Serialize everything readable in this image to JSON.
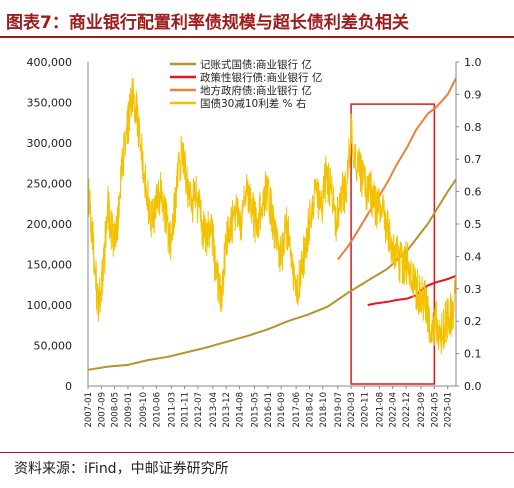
{
  "header": {
    "title": "图表7：商业银行配置利率债规模与超长债利差负相关"
  },
  "footer": {
    "source": "资料来源：iFind，中邮证券研究所"
  },
  "chart_data": {
    "type": "line",
    "left_axis": {
      "ylim": [
        0,
        400000
      ],
      "ticks": [
        "0",
        "50,000",
        "100,000",
        "150,000",
        "200,000",
        "250,000",
        "300,000",
        "350,000",
        "400,000"
      ]
    },
    "right_axis": {
      "ylim": [
        0,
        1.0
      ],
      "ticks": [
        "0.0",
        "0.1",
        "0.2",
        "0.3",
        "0.4",
        "0.5",
        "0.6",
        "0.7",
        "0.8",
        "0.9",
        "1.0"
      ]
    },
    "x_range": [
      "2007-01",
      "2025-06"
    ],
    "x_ticks": [
      "2007-01",
      "2007-09",
      "2008-05",
      "2009-01",
      "2009-10",
      "2010-06",
      "2011-03",
      "2011-11",
      "2012-07",
      "2013-04",
      "2013-12",
      "2014-08",
      "2015-05",
      "2016-01",
      "2016-09",
      "2017-06",
      "2018-02",
      "2018-10",
      "2019-07",
      "2020-03",
      "2020-11",
      "2021-08",
      "2022-04",
      "2022-12",
      "2023-09",
      "2024-05",
      "2025-01"
    ],
    "highlight": {
      "label": "",
      "x_start": "2020-03",
      "x_end": "2024-05"
    },
    "colors": {
      "gov_bonds": "#b8922a",
      "policy_bonds": "#e8141e",
      "local_bonds": "#e8823c",
      "spread": "#f2c200",
      "box": "#e01818"
    },
    "series": [
      {
        "name": "记账式国债:商业银行  亿",
        "axis": "left",
        "color": "#b8922a",
        "points": [
          [
            "2007-01",
            20000
          ],
          [
            "2008-01",
            24000
          ],
          [
            "2009-01",
            26000
          ],
          [
            "2010-01",
            32000
          ],
          [
            "2011-01",
            36000
          ],
          [
            "2012-01",
            42000
          ],
          [
            "2013-01",
            48000
          ],
          [
            "2014-01",
            55000
          ],
          [
            "2015-01",
            62000
          ],
          [
            "2016-01",
            70000
          ],
          [
            "2017-01",
            80000
          ],
          [
            "2018-01",
            88000
          ],
          [
            "2019-01",
            98000
          ],
          [
            "2020-01",
            115000
          ],
          [
            "2021-01",
            130000
          ],
          [
            "2022-01",
            145000
          ],
          [
            "2023-01",
            168000
          ],
          [
            "2024-01",
            200000
          ],
          [
            "2025-01",
            240000
          ],
          [
            "2025-06",
            255000
          ]
        ]
      },
      {
        "name": "政策性银行债:商业银行  亿",
        "axis": "right",
        "color": "#e8141e",
        "points": [
          [
            "2021-01",
            0.25
          ],
          [
            "2021-06",
            0.255
          ],
          [
            "2022-01",
            0.26
          ],
          [
            "2022-06",
            0.265
          ],
          [
            "2023-01",
            0.27
          ],
          [
            "2023-06",
            0.28
          ],
          [
            "2023-10",
            0.3
          ],
          [
            "2024-01",
            0.31
          ],
          [
            "2024-06",
            0.32
          ],
          [
            "2025-01",
            0.33
          ],
          [
            "2025-06",
            0.34
          ]
        ]
      },
      {
        "name": "地方政府债:商业银行  亿",
        "axis": "right",
        "color": "#e8823c",
        "points": [
          [
            "2019-07",
            0.39
          ],
          [
            "2020-01",
            0.43
          ],
          [
            "2020-06",
            0.47
          ],
          [
            "2021-01",
            0.53
          ],
          [
            "2021-06",
            0.57
          ],
          [
            "2022-01",
            0.63
          ],
          [
            "2022-06",
            0.68
          ],
          [
            "2023-01",
            0.74
          ],
          [
            "2023-06",
            0.79
          ],
          [
            "2024-01",
            0.84
          ],
          [
            "2024-06",
            0.86
          ],
          [
            "2025-01",
            0.9
          ],
          [
            "2025-06",
            0.95
          ]
        ]
      },
      {
        "name": "国债30减10利差  % 右",
        "axis": "right",
        "color": "#f2c200",
        "points": [
          [
            "2007-01",
            0.6
          ],
          [
            "2007-04",
            0.45
          ],
          [
            "2007-07",
            0.25
          ],
          [
            "2007-10",
            0.35
          ],
          [
            "2008-01",
            0.55
          ],
          [
            "2008-04",
            0.45
          ],
          [
            "2008-07",
            0.5
          ],
          [
            "2008-10",
            0.7
          ],
          [
            "2009-01",
            0.8
          ],
          [
            "2009-03",
            0.9
          ],
          [
            "2009-06",
            0.85
          ],
          [
            "2009-09",
            0.75
          ],
          [
            "2009-12",
            0.6
          ],
          [
            "2010-03",
            0.5
          ],
          [
            "2010-06",
            0.55
          ],
          [
            "2010-09",
            0.6
          ],
          [
            "2010-12",
            0.5
          ],
          [
            "2011-03",
            0.45
          ],
          [
            "2011-06",
            0.6
          ],
          [
            "2011-09",
            0.72
          ],
          [
            "2011-12",
            0.65
          ],
          [
            "2012-03",
            0.55
          ],
          [
            "2012-06",
            0.6
          ],
          [
            "2012-09",
            0.5
          ],
          [
            "2012-12",
            0.45
          ],
          [
            "2013-03",
            0.5
          ],
          [
            "2013-06",
            0.35
          ],
          [
            "2013-09",
            0.25
          ],
          [
            "2013-12",
            0.45
          ],
          [
            "2014-03",
            0.5
          ],
          [
            "2014-06",
            0.55
          ],
          [
            "2014-09",
            0.5
          ],
          [
            "2014-12",
            0.6
          ],
          [
            "2015-03",
            0.55
          ],
          [
            "2015-06",
            0.5
          ],
          [
            "2015-09",
            0.55
          ],
          [
            "2015-12",
            0.6
          ],
          [
            "2016-03",
            0.55
          ],
          [
            "2016-06",
            0.45
          ],
          [
            "2016-09",
            0.4
          ],
          [
            "2016-12",
            0.5
          ],
          [
            "2017-03",
            0.4
          ],
          [
            "2017-06",
            0.3
          ],
          [
            "2017-09",
            0.35
          ],
          [
            "2017-12",
            0.45
          ],
          [
            "2018-03",
            0.55
          ],
          [
            "2018-06",
            0.6
          ],
          [
            "2018-09",
            0.55
          ],
          [
            "2018-12",
            0.65
          ],
          [
            "2019-03",
            0.6
          ],
          [
            "2019-06",
            0.5
          ],
          [
            "2019-09",
            0.6
          ],
          [
            "2019-12",
            0.6
          ],
          [
            "2020-03",
            0.78
          ],
          [
            "2020-06",
            0.7
          ],
          [
            "2020-09",
            0.65
          ],
          [
            "2020-12",
            0.6
          ],
          [
            "2021-03",
            0.6
          ],
          [
            "2021-06",
            0.55
          ],
          [
            "2021-09",
            0.55
          ],
          [
            "2021-12",
            0.5
          ],
          [
            "2022-03",
            0.45
          ],
          [
            "2022-06",
            0.4
          ],
          [
            "2022-09",
            0.38
          ],
          [
            "2022-12",
            0.38
          ],
          [
            "2023-03",
            0.35
          ],
          [
            "2023-06",
            0.3
          ],
          [
            "2023-09",
            0.28
          ],
          [
            "2023-12",
            0.25
          ],
          [
            "2024-03",
            0.15
          ],
          [
            "2024-06",
            0.2
          ],
          [
            "2024-09",
            0.15
          ],
          [
            "2024-12",
            0.2
          ],
          [
            "2025-03",
            0.22
          ],
          [
            "2025-06",
            0.28
          ]
        ]
      }
    ]
  }
}
